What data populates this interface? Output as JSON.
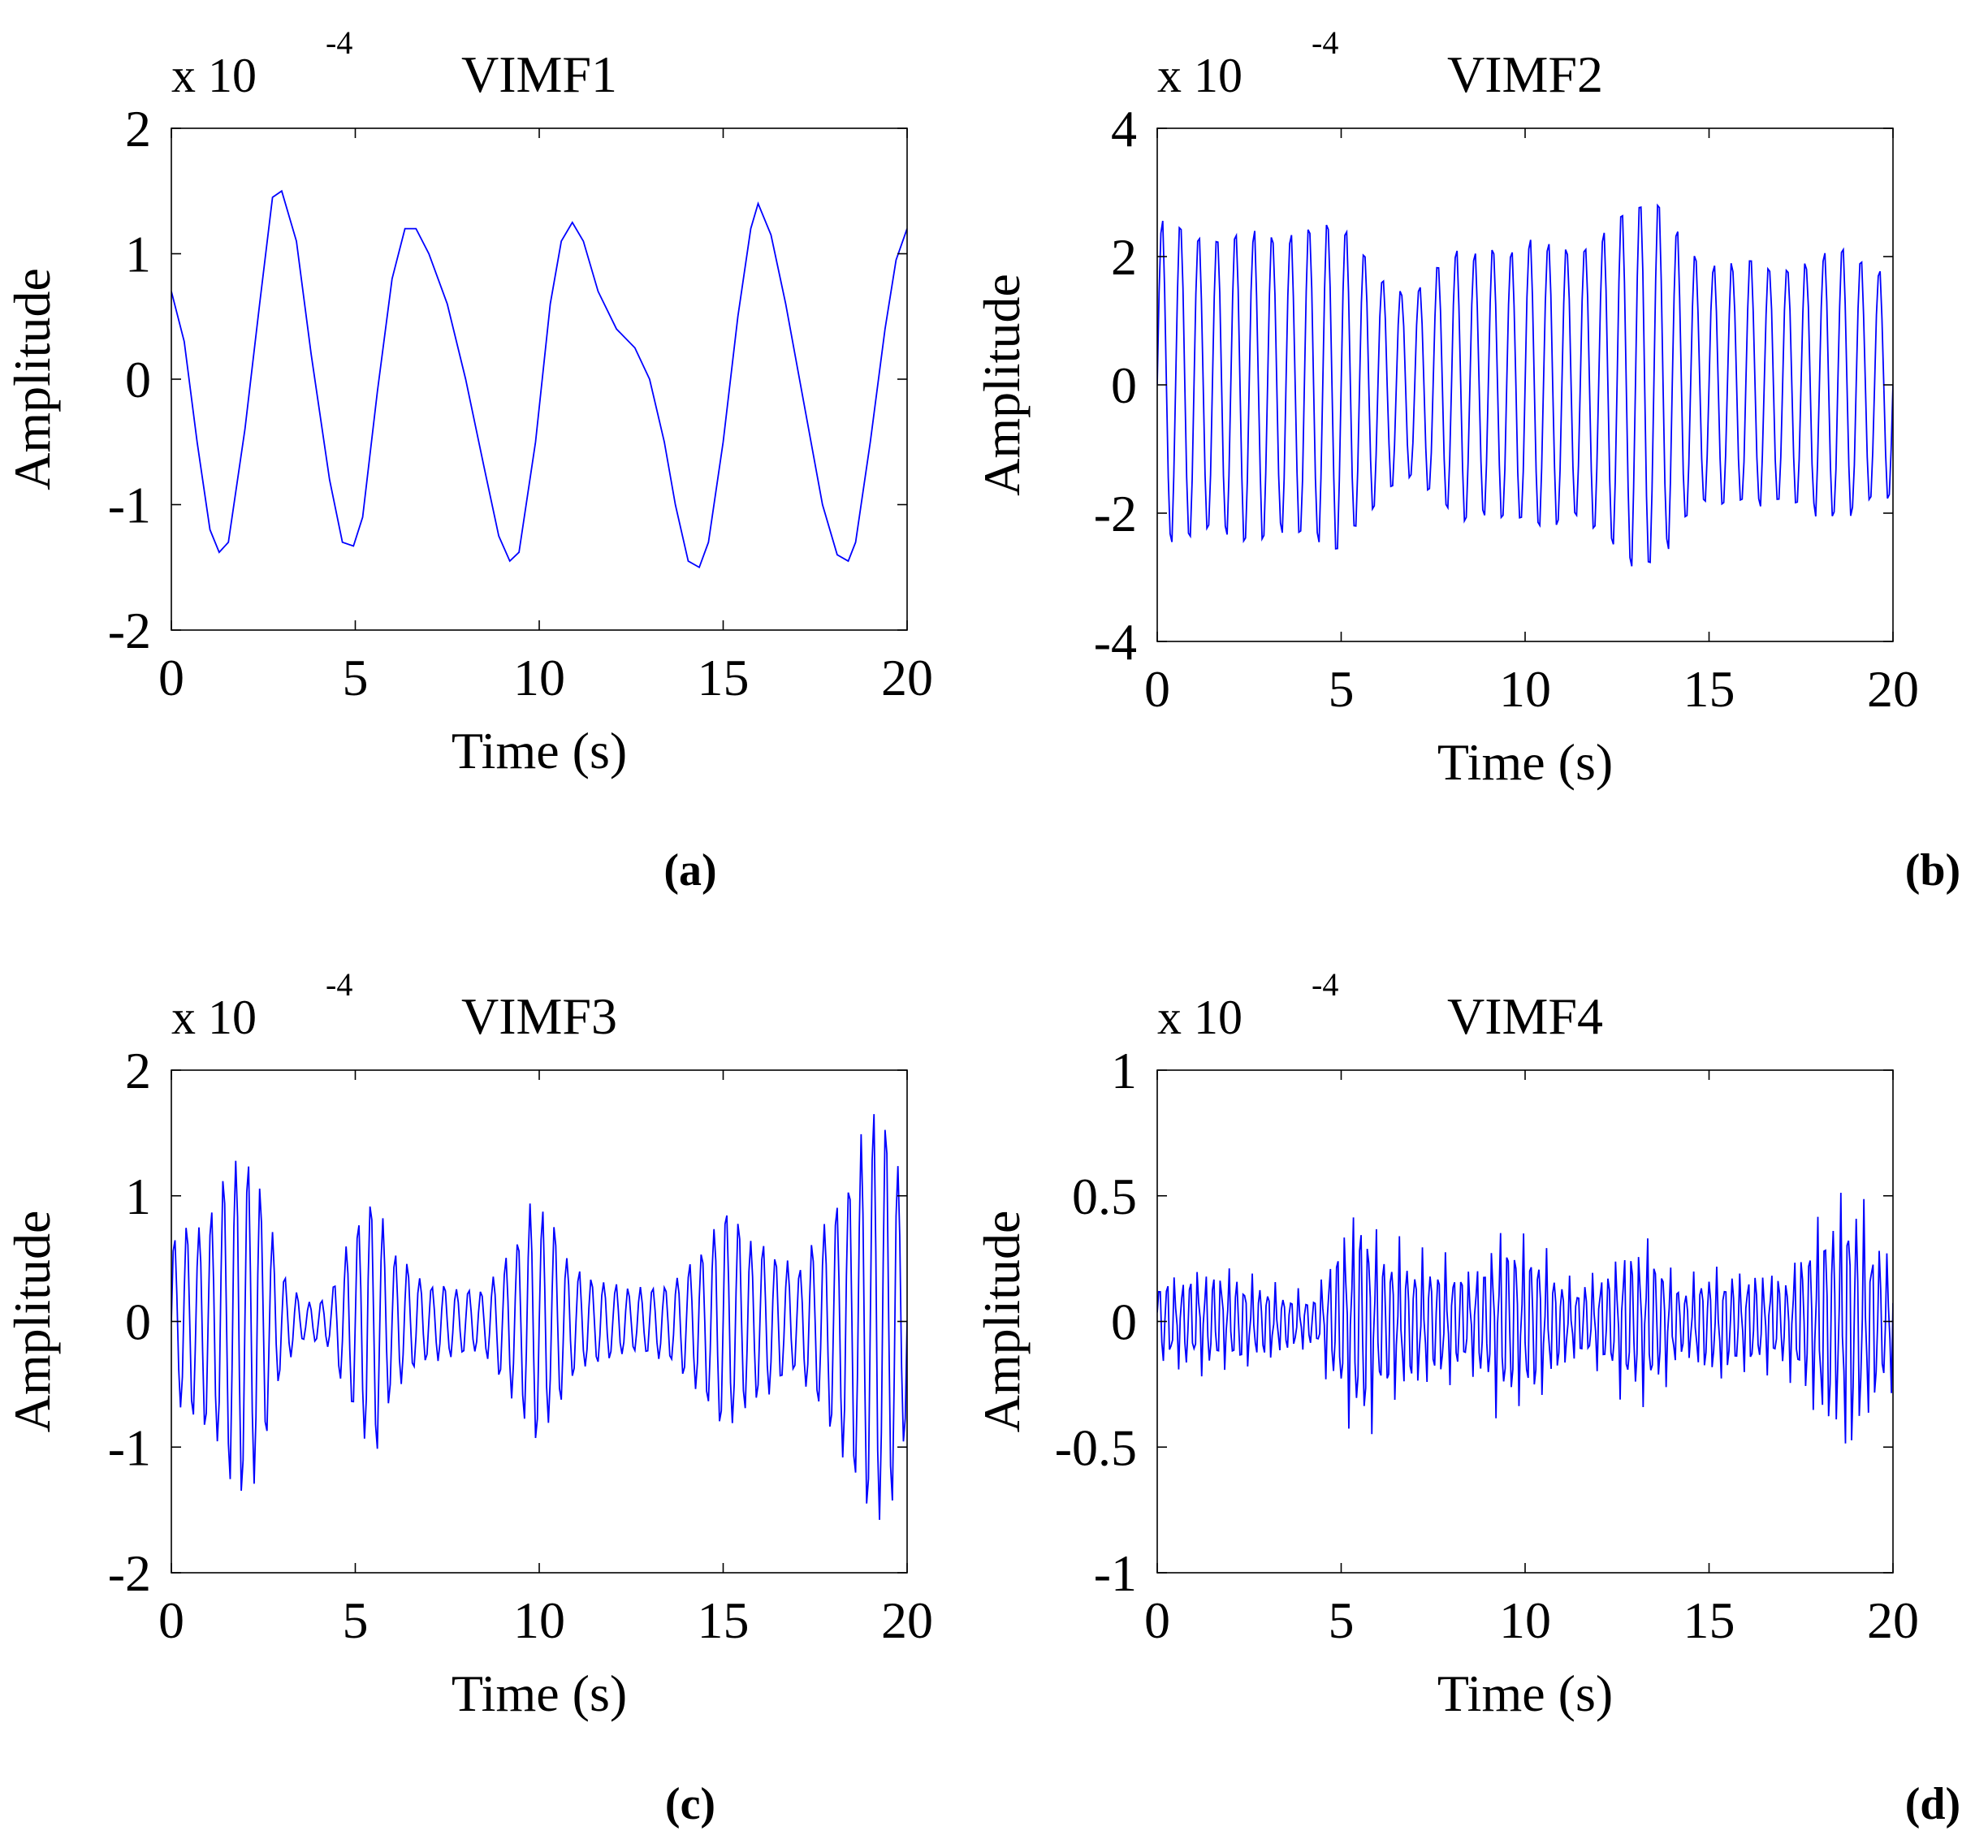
{
  "chart_data": [
    {
      "panel_label": "(a)",
      "type": "line",
      "title": "VIMF1",
      "xlabel": "Time (s)",
      "ylabel": "Amplitude",
      "y_multiplier": "x 10",
      "y_exponent": "-4",
      "xlim": [
        0,
        20
      ],
      "ylim": [
        -2,
        2
      ],
      "xticks": [
        "0",
        "5",
        "10",
        "15",
        "20"
      ],
      "yticks": [
        "-2",
        "-1",
        "0",
        "1",
        "2"
      ],
      "xtick_values": [
        0,
        5,
        10,
        15,
        20
      ],
      "ytick_values": [
        -2,
        -1,
        0,
        1,
        2
      ],
      "line_color": "#0000ff",
      "series": [
        {
          "x": [
            0,
            0.35,
            0.7,
            1.05,
            1.3,
            1.55,
            2.0,
            2.4,
            2.75,
            3.0,
            3.4,
            3.8,
            4.3,
            4.65,
            4.95,
            5.2,
            5.6,
            6.0,
            6.35,
            6.65,
            7.0,
            7.5,
            8.0,
            8.5,
            8.9,
            9.2,
            9.45,
            9.9,
            10.3,
            10.6,
            10.9,
            11.2,
            11.6,
            12.1,
            12.6,
            13.0,
            13.4,
            13.7,
            14.05,
            14.35,
            14.6,
            15.0,
            15.4,
            15.75,
            15.95,
            16.3,
            16.7,
            17.2,
            17.7,
            18.1,
            18.4,
            18.6,
            19.0,
            19.4,
            19.7,
            20.0
          ],
          "y": [
            0.7,
            0.3,
            -0.5,
            -1.2,
            -1.38,
            -1.3,
            -0.4,
            0.6,
            1.45,
            1.5,
            1.1,
            0.2,
            -0.8,
            -1.3,
            -1.33,
            -1.1,
            -0.1,
            0.8,
            1.2,
            1.2,
            1.0,
            0.6,
            0.0,
            -0.7,
            -1.25,
            -1.45,
            -1.38,
            -0.5,
            0.6,
            1.1,
            1.25,
            1.1,
            0.7,
            0.4,
            0.25,
            0.0,
            -0.5,
            -1.0,
            -1.45,
            -1.5,
            -1.3,
            -0.5,
            0.5,
            1.2,
            1.4,
            1.15,
            0.6,
            -0.2,
            -1.0,
            -1.4,
            -1.45,
            -1.3,
            -0.5,
            0.4,
            0.95,
            1.2
          ]
        }
      ]
    },
    {
      "panel_label": "(b)",
      "type": "line",
      "title": "VIMF2",
      "xlabel": "Time (s)",
      "ylabel": "Amplitude",
      "y_multiplier": "x 10",
      "y_exponent": "-4",
      "xlim": [
        0,
        20
      ],
      "ylim": [
        -4,
        4
      ],
      "xticks": [
        "0",
        "5",
        "10",
        "15",
        "20"
      ],
      "yticks": [
        "-4",
        "-2",
        "0",
        "2",
        "4"
      ],
      "xtick_values": [
        0,
        5,
        10,
        15,
        20
      ],
      "ytick_values": [
        -4,
        -2,
        0,
        2,
        4
      ],
      "line_color": "#0000ff",
      "signal": {
        "samples": 400,
        "cycles": 40,
        "env_base": 2.2,
        "env_mods": [
          [
            0.35,
            1.0,
            0.0
          ],
          [
            0.25,
            2.3,
            1.2
          ],
          [
            0.15,
            3.7,
            2.1
          ]
        ],
        "harmonic": 0.0,
        "jitter": 0.05
      }
    },
    {
      "panel_label": "(c)",
      "type": "line",
      "title": "VIMF3",
      "xlabel": "Time (s)",
      "ylabel": "Amplitude",
      "y_multiplier": "x 10",
      "y_exponent": "-4",
      "xlim": [
        0,
        20
      ],
      "ylim": [
        -2,
        2
      ],
      "xticks": [
        "0",
        "5",
        "10",
        "15",
        "20"
      ],
      "yticks": [
        "-2",
        "-1",
        "0",
        "1",
        "2"
      ],
      "xtick_values": [
        0,
        5,
        10,
        15,
        20
      ],
      "ytick_values": [
        -2,
        -1,
        0,
        1,
        2
      ],
      "line_color": "#0000ff",
      "signal": {
        "samples": 400,
        "cycles": 60,
        "env_knots": [
          [
            0,
            0.65
          ],
          [
            1.0,
            0.85
          ],
          [
            1.8,
            1.35
          ],
          [
            2.3,
            1.2
          ],
          [
            3.0,
            0.4
          ],
          [
            3.6,
            0.15
          ],
          [
            4.3,
            0.2
          ],
          [
            5.0,
            0.8
          ],
          [
            5.5,
            1.1
          ],
          [
            6.0,
            0.55
          ],
          [
            7.0,
            0.3
          ],
          [
            8.5,
            0.25
          ],
          [
            9.3,
            0.6
          ],
          [
            9.8,
            0.95
          ],
          [
            10.3,
            0.8
          ],
          [
            11.0,
            0.4
          ],
          [
            12.5,
            0.25
          ],
          [
            13.5,
            0.3
          ],
          [
            14.5,
            0.6
          ],
          [
            15.0,
            0.95
          ],
          [
            15.6,
            0.7
          ],
          [
            17.0,
            0.4
          ],
          [
            18.0,
            0.9
          ],
          [
            19.2,
            1.7
          ],
          [
            19.7,
            1.4
          ],
          [
            20.0,
            0.9
          ]
        ],
        "harmonic": 0.0,
        "jitter": 0.08
      }
    },
    {
      "panel_label": "(d)",
      "type": "line",
      "title": "VIMF4",
      "xlabel": "Time (s)",
      "ylabel": "Amplitude",
      "y_multiplier": "x 10",
      "y_exponent": "-4",
      "xlim": [
        0,
        20
      ],
      "ylim": [
        -1,
        1
      ],
      "xticks": [
        "0",
        "5",
        "10",
        "15",
        "20"
      ],
      "yticks": [
        "-1",
        "-0.5",
        "0",
        "0.5",
        "1"
      ],
      "xtick_values": [
        0,
        5,
        10,
        15,
        20
      ],
      "ytick_values": [
        -1,
        -0.5,
        0,
        0.5,
        1
      ],
      "line_color": "#0000ff",
      "signal": {
        "samples": 480,
        "cycles": 95,
        "env_knots": [
          [
            0,
            0.18
          ],
          [
            1.5,
            0.2
          ],
          [
            2.5,
            0.18
          ],
          [
            3.6,
            0.12
          ],
          [
            4.3,
            0.1
          ],
          [
            5.0,
            0.35
          ],
          [
            5.6,
            0.45
          ],
          [
            6.3,
            0.3
          ],
          [
            7.5,
            0.25
          ],
          [
            8.5,
            0.2
          ],
          [
            9.5,
            0.38
          ],
          [
            10.3,
            0.3
          ],
          [
            11.3,
            0.15
          ],
          [
            12.0,
            0.18
          ],
          [
            12.8,
            0.32
          ],
          [
            13.5,
            0.3
          ],
          [
            14.3,
            0.15
          ],
          [
            15.0,
            0.22
          ],
          [
            16.0,
            0.2
          ],
          [
            17.0,
            0.18
          ],
          [
            18.2,
            0.45
          ],
          [
            18.9,
            0.52
          ],
          [
            19.5,
            0.35
          ],
          [
            20.0,
            0.25
          ]
        ],
        "harmonic": 0.35,
        "jitter": 0.1
      }
    }
  ]
}
